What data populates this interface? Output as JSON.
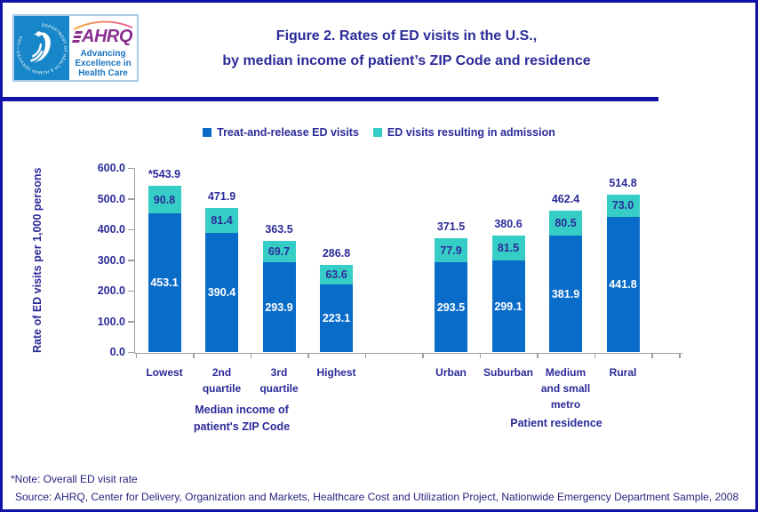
{
  "colors": {
    "navy_text": "#2B2B99",
    "border_navy": "#1212A6",
    "bar_blue": "#0A6CC9",
    "bar_teal": "#36CDC6",
    "axis_gray": "#A0A0A4",
    "hhs_blue": "#1787C9",
    "ahrq_purple": "#8A2E8F",
    "ahrq_tagline_blue": "#1B74BE"
  },
  "header": {
    "hhs_seal_text": "DEPARTMENT OF HEALTH & HUMAN SERVICES • USA",
    "ahrq_wordmark": "AHRQ",
    "ahrq_tagline_lines": [
      "Advancing",
      "Excellence in",
      "Health Care"
    ],
    "title_lines": [
      "Figure 2. Rates of ED visits in the U.S.,",
      "by median income of patient’s ZIP Code and residence"
    ]
  },
  "chart_data": {
    "type": "bar",
    "stacked": true,
    "title": "Figure 2. Rates of ED visits in the U.S., by median income of patient’s ZIP Code and residence",
    "xlabel": "",
    "ylabel": "Rate of ED visits per 1,000 persons",
    "ylim": [
      0,
      600
    ],
    "ytick_step": 100,
    "grid": false,
    "legend_position": "top",
    "categories": [
      "Lowest",
      "2nd quartile",
      "3rd quartile",
      "Highest",
      "Urban",
      "Suburban",
      "Medium and small metro",
      "Rural"
    ],
    "category_label_lines": [
      [
        "Lowest"
      ],
      [
        "2nd",
        "quartile"
      ],
      [
        "3rd",
        "quartile"
      ],
      [
        "Highest"
      ],
      [
        "Urban"
      ],
      [
        "Suburban"
      ],
      [
        "Medium",
        "and small",
        "metro"
      ],
      [
        "Rural"
      ]
    ],
    "series": [
      {
        "name": "Treat-and-release ED visits",
        "color": "#0A6CC9",
        "label_color": "#FFFFFF",
        "values": [
          453.1,
          390.4,
          293.9,
          223.1,
          293.5,
          299.1,
          381.9,
          441.8
        ]
      },
      {
        "name": "ED visits resulting in admission",
        "color": "#36CDC6",
        "label_color": "#2B2B99",
        "values": [
          90.8,
          81.4,
          69.7,
          63.6,
          77.9,
          81.5,
          80.5,
          73.0
        ]
      }
    ],
    "totals": [
      543.9,
      471.9,
      363.5,
      286.8,
      371.5,
      380.6,
      462.4,
      514.8
    ],
    "total_labels": [
      "*543.9",
      "471.9",
      "363.5",
      "286.8",
      "371.5",
      "380.6",
      "462.4",
      "514.8"
    ],
    "x_groups": [
      {
        "label_lines": [
          "Median income of",
          "patient's ZIP Code"
        ],
        "categories": [
          "Lowest",
          "2nd quartile",
          "3rd quartile",
          "Highest"
        ]
      },
      {
        "label_lines": [
          "Patient residence"
        ],
        "categories": [
          "Urban",
          "Suburban",
          "Medium and small metro",
          "Rural"
        ]
      }
    ]
  },
  "footer": {
    "note": "*Note: Overall ED visit rate",
    "source": "Source: AHRQ, Center for Delivery, Organization and Markets, Healthcare Cost and Utilization Project, Nationwide Emergency Department Sample, 2008"
  }
}
